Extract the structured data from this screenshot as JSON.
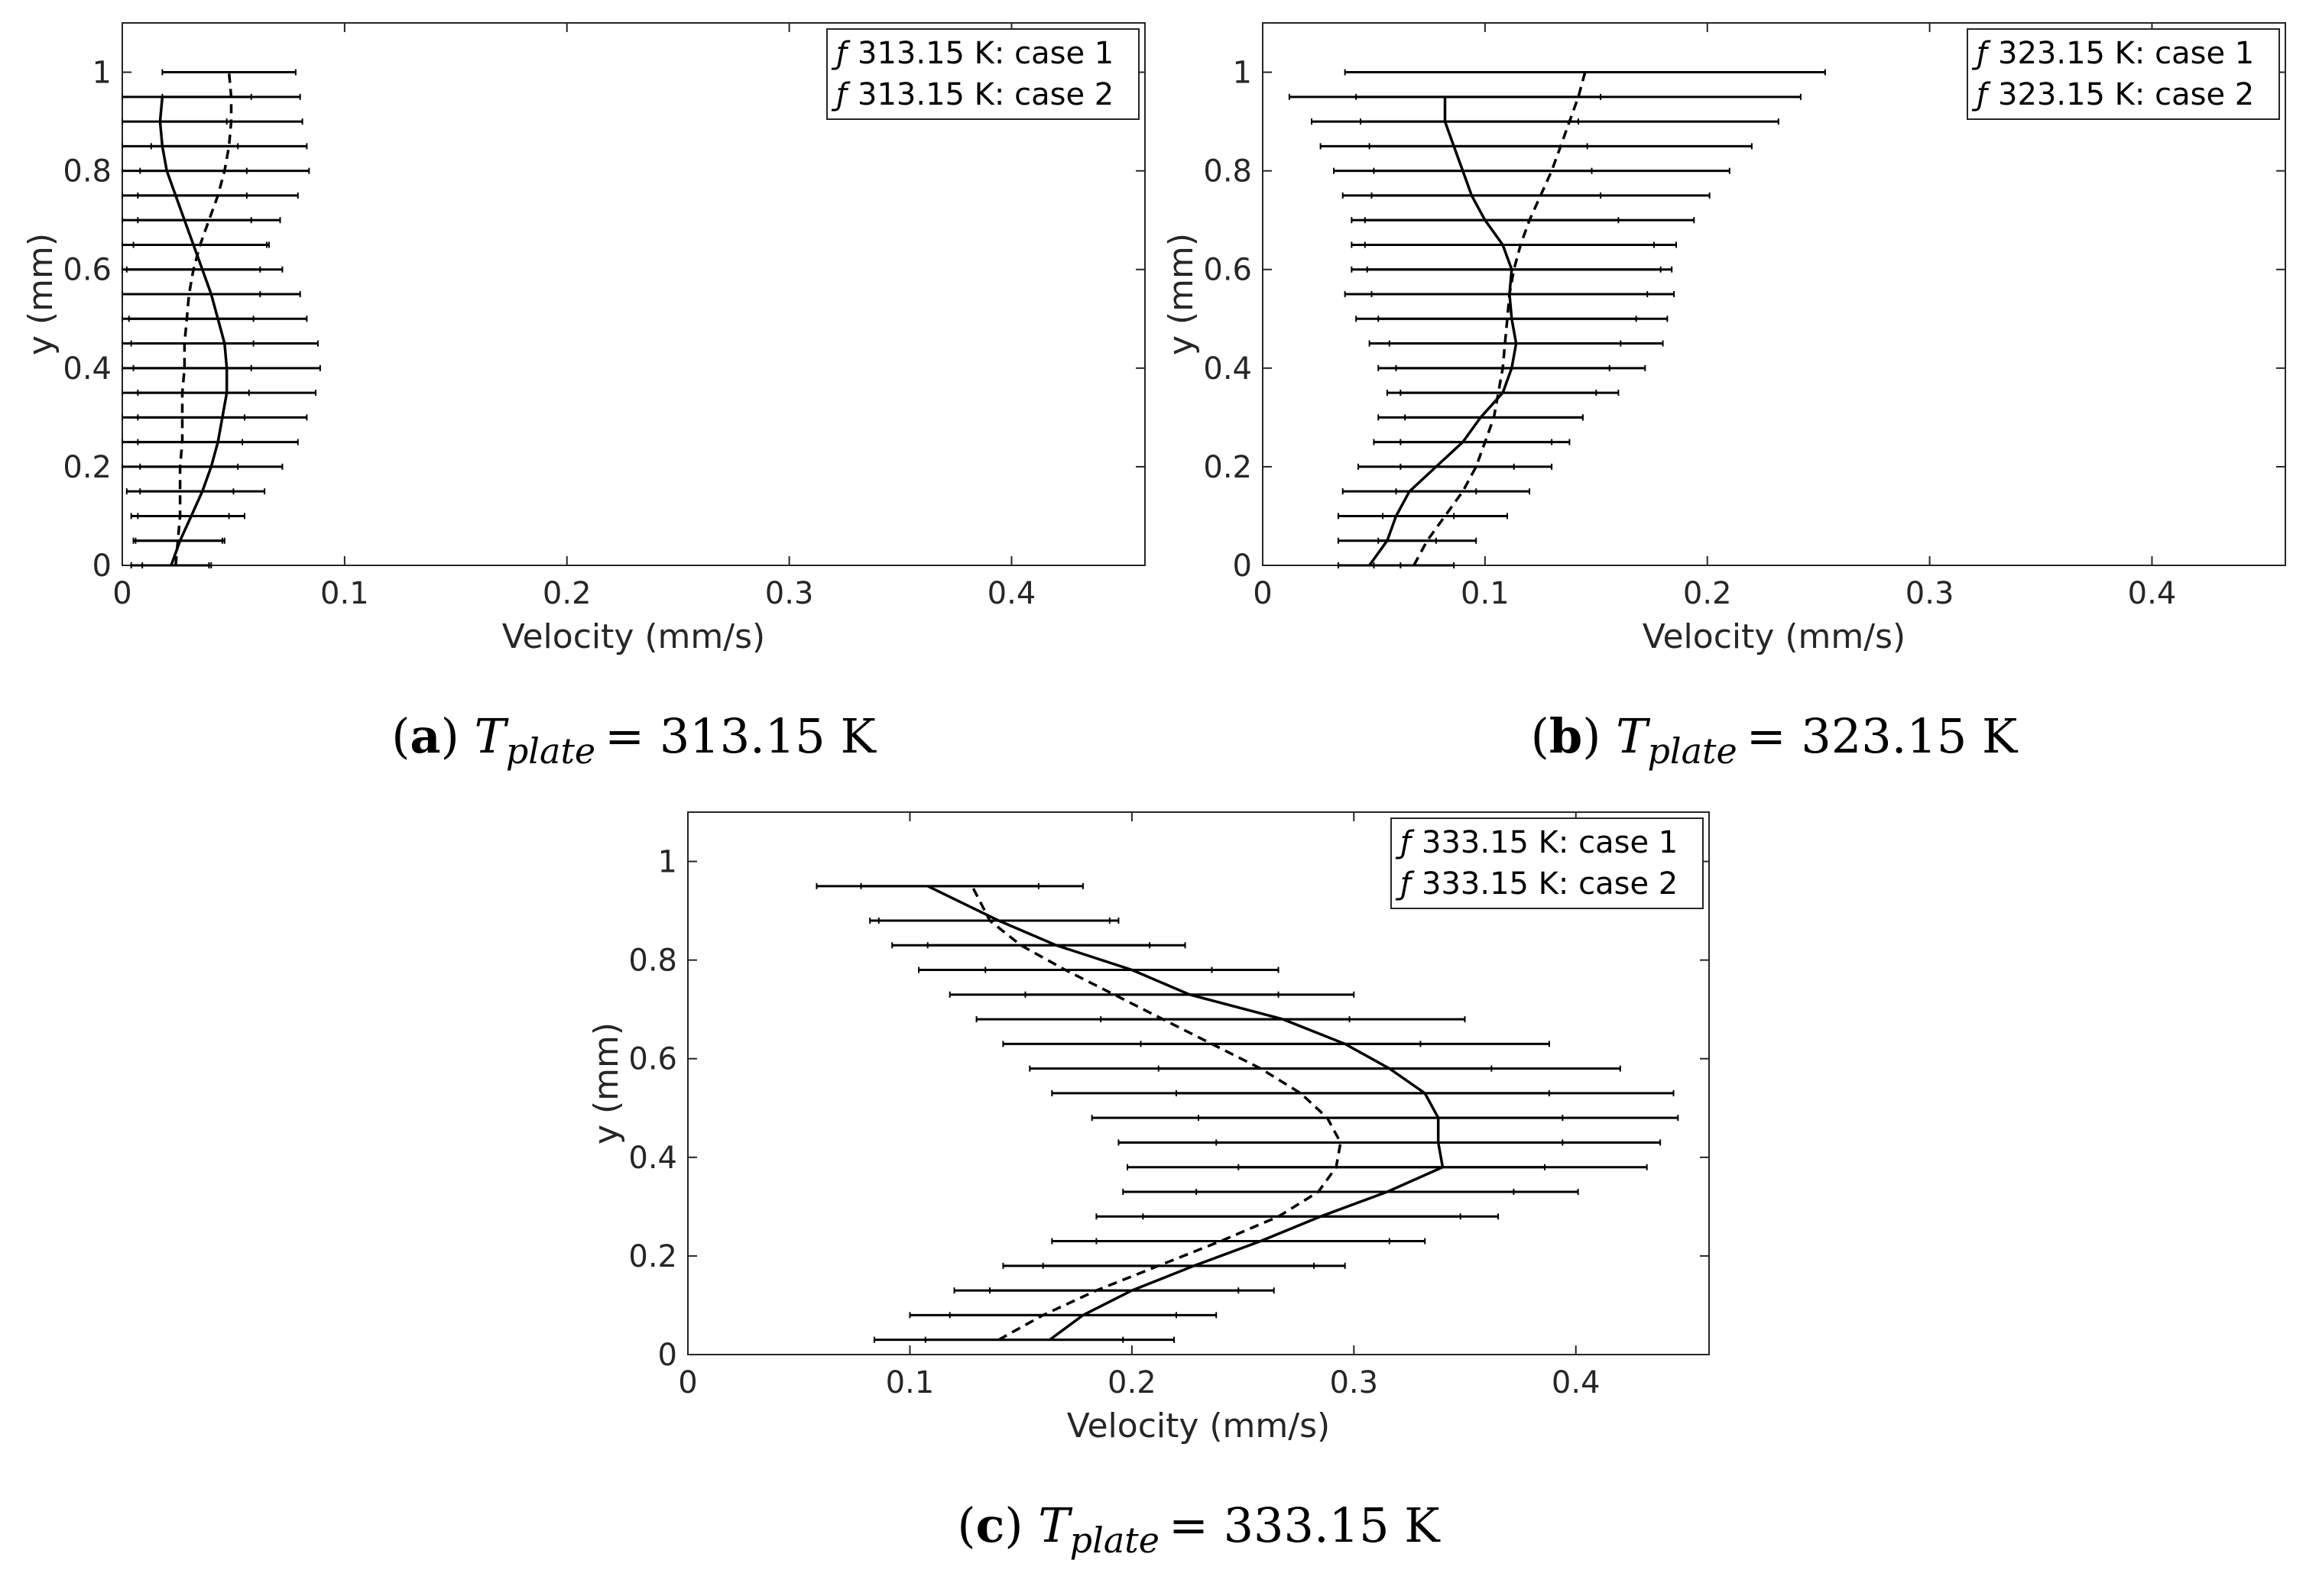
{
  "chart_data": [
    {
      "panel": "a",
      "type": "line",
      "caption": {
        "label": "a",
        "symbol": "T",
        "subscript": "plate",
        "value": "= 313.15 K"
      },
      "xlabel": "Velocity (mm/s)",
      "ylabel": "y (mm)",
      "xlim": [
        0,
        0.46
      ],
      "ylim": [
        0,
        1.1
      ],
      "xticks": [
        "0",
        "0.1",
        "0.2",
        "0.3",
        "0.4"
      ],
      "xtick_values": [
        0,
        0.1,
        0.2,
        0.3,
        0.4
      ],
      "yticks": [
        "0",
        "0.2",
        "0.4",
        "0.6",
        "0.8",
        "1"
      ],
      "ytick_values": [
        0,
        0.2,
        0.4,
        0.6,
        0.8,
        1.0
      ],
      "legend_position": "top-right",
      "series": [
        {
          "name": "313.15 K: case 1",
          "style": "solid",
          "legend_marker": "ƒ",
          "y": [
            0.0,
            0.05,
            0.1,
            0.15,
            0.2,
            0.25,
            0.3,
            0.35,
            0.4,
            0.45,
            0.5,
            0.55,
            0.6,
            0.65,
            0.7,
            0.75,
            0.8,
            0.85,
            0.9,
            0.95
          ],
          "x": [
            0.022,
            0.026,
            0.031,
            0.036,
            0.04,
            0.043,
            0.045,
            0.047,
            0.047,
            0.046,
            0.043,
            0.04,
            0.036,
            0.032,
            0.028,
            0.024,
            0.02,
            0.018,
            0.017,
            0.018
          ],
          "xerr": [
            0.018,
            0.02,
            0.024,
            0.028,
            0.032,
            0.036,
            0.038,
            0.04,
            0.042,
            0.042,
            0.04,
            0.04,
            0.036,
            0.034,
            0.03,
            0.032,
            0.036,
            0.034,
            0.03,
            0.04
          ]
        },
        {
          "name": "313.15 K: case 2",
          "style": "dashed",
          "legend_marker": "ƒ",
          "y": [
            0.0,
            0.05,
            0.1,
            0.15,
            0.2,
            0.25,
            0.3,
            0.35,
            0.4,
            0.45,
            0.5,
            0.55,
            0.6,
            0.65,
            0.7,
            0.75,
            0.8,
            0.85,
            0.9,
            0.95,
            1.0
          ],
          "x": [
            0.024,
            0.025,
            0.026,
            0.026,
            0.026,
            0.027,
            0.027,
            0.027,
            0.028,
            0.028,
            0.029,
            0.03,
            0.032,
            0.035,
            0.039,
            0.043,
            0.046,
            0.048,
            0.049,
            0.049,
            0.048
          ],
          "xerr": [
            0.015,
            0.02,
            0.022,
            0.024,
            0.026,
            0.027,
            0.028,
            0.03,
            0.03,
            0.031,
            0.03,
            0.032,
            0.03,
            0.03,
            0.032,
            0.036,
            0.038,
            0.035,
            0.032,
            0.031,
            0.03
          ]
        }
      ]
    },
    {
      "panel": "b",
      "type": "line",
      "caption": {
        "label": "b",
        "symbol": "T",
        "subscript": "plate",
        "value": "= 323.15 K"
      },
      "xlabel": "Velocity (mm/s)",
      "ylabel": "y (mm)",
      "xlim": [
        0,
        0.46
      ],
      "ylim": [
        0,
        1.1
      ],
      "xticks": [
        "0",
        "0.1",
        "0.2",
        "0.3",
        "0.4"
      ],
      "xtick_values": [
        0,
        0.1,
        0.2,
        0.3,
        0.4
      ],
      "yticks": [
        "0",
        "0.2",
        "0.4",
        "0.6",
        "0.8",
        "1"
      ],
      "ytick_values": [
        0,
        0.2,
        0.4,
        0.6,
        0.8,
        1.0
      ],
      "legend_position": "top-right",
      "series": [
        {
          "name": "323.15 K: case 1",
          "style": "solid",
          "legend_marker": "ƒ",
          "y": [
            0.0,
            0.05,
            0.1,
            0.15,
            0.2,
            0.25,
            0.3,
            0.35,
            0.4,
            0.45,
            0.5,
            0.55,
            0.6,
            0.65,
            0.7,
            0.75,
            0.8,
            0.85,
            0.9,
            0.95
          ],
          "x": [
            0.048,
            0.056,
            0.06,
            0.066,
            0.078,
            0.09,
            0.098,
            0.108,
            0.112,
            0.114,
            0.112,
            0.111,
            0.112,
            0.108,
            0.1,
            0.094,
            0.09,
            0.086,
            0.082,
            0.082
          ],
          "xerr": [
            0.014,
            0.022,
            0.026,
            0.03,
            0.035,
            0.04,
            0.046,
            0.052,
            0.06,
            0.066,
            0.07,
            0.074,
            0.072,
            0.068,
            0.06,
            0.058,
            0.058,
            0.06,
            0.06,
            0.07
          ]
        },
        {
          "name": "323.15 K: case 2",
          "style": "dashed",
          "legend_marker": "ƒ",
          "y": [
            0.0,
            0.05,
            0.1,
            0.15,
            0.2,
            0.25,
            0.3,
            0.35,
            0.4,
            0.45,
            0.5,
            0.55,
            0.6,
            0.65,
            0.7,
            0.75,
            0.8,
            0.85,
            0.9,
            0.95,
            1.0
          ],
          "x": [
            0.068,
            0.074,
            0.082,
            0.09,
            0.096,
            0.1,
            0.104,
            0.106,
            0.108,
            0.109,
            0.11,
            0.111,
            0.113,
            0.116,
            0.12,
            0.125,
            0.13,
            0.134,
            0.138,
            0.142,
            0.145
          ],
          "xerr": [
            0.018,
            0.022,
            0.028,
            0.03,
            0.034,
            0.038,
            0.04,
            0.044,
            0.048,
            0.052,
            0.058,
            0.062,
            0.066,
            0.07,
            0.074,
            0.076,
            0.08,
            0.086,
            0.094,
            0.1,
            0.108
          ]
        }
      ]
    },
    {
      "panel": "c",
      "type": "line",
      "caption": {
        "label": "c",
        "symbol": "T",
        "subscript": "plate",
        "value": "= 333.15 K"
      },
      "xlabel": "Velocity (mm/s)",
      "ylabel": "y (mm)",
      "xlim": [
        0,
        0.46
      ],
      "ylim": [
        0,
        1.1
      ],
      "xticks": [
        "0",
        "0.1",
        "0.2",
        "0.3",
        "0.4"
      ],
      "xtick_values": [
        0,
        0.1,
        0.2,
        0.3,
        0.4
      ],
      "yticks": [
        "0",
        "0.2",
        "0.4",
        "0.6",
        "0.8",
        "1"
      ],
      "ytick_values": [
        0,
        0.2,
        0.4,
        0.6,
        0.8,
        1.0
      ],
      "legend_position": "top-right",
      "series": [
        {
          "name": "333.15 K: case 1",
          "style": "solid",
          "legend_marker": "ƒ",
          "y": [
            0.03,
            0.08,
            0.13,
            0.18,
            0.23,
            0.28,
            0.33,
            0.38,
            0.43,
            0.48,
            0.53,
            0.58,
            0.63,
            0.68,
            0.73,
            0.78,
            0.83,
            0.88,
            0.95
          ],
          "x": [
            0.163,
            0.178,
            0.2,
            0.228,
            0.258,
            0.285,
            0.315,
            0.34,
            0.338,
            0.338,
            0.332,
            0.316,
            0.296,
            0.268,
            0.226,
            0.2,
            0.166,
            0.14,
            0.108
          ],
          "xerr": [
            0.056,
            0.06,
            0.064,
            0.068,
            0.074,
            0.08,
            0.086,
            0.092,
            0.1,
            0.108,
            0.112,
            0.104,
            0.092,
            0.082,
            0.074,
            0.066,
            0.058,
            0.054,
            0.05
          ]
        },
        {
          "name": "333.15 K: case 2",
          "style": "dashed",
          "legend_marker": "ƒ",
          "y": [
            0.03,
            0.08,
            0.13,
            0.18,
            0.23,
            0.28,
            0.33,
            0.38,
            0.43,
            0.48,
            0.53,
            0.58,
            0.63,
            0.68,
            0.73,
            0.78,
            0.83,
            0.88,
            0.95
          ],
          "x": [
            0.14,
            0.16,
            0.184,
            0.212,
            0.24,
            0.266,
            0.284,
            0.292,
            0.294,
            0.288,
            0.276,
            0.258,
            0.236,
            0.214,
            0.192,
            0.17,
            0.15,
            0.136,
            0.128
          ],
          "xerr": [
            0.056,
            0.06,
            0.064,
            0.07,
            0.076,
            0.082,
            0.088,
            0.094,
            0.1,
            0.106,
            0.112,
            0.104,
            0.094,
            0.084,
            0.074,
            0.066,
            0.058,
            0.054,
            0.05
          ]
        }
      ]
    }
  ]
}
